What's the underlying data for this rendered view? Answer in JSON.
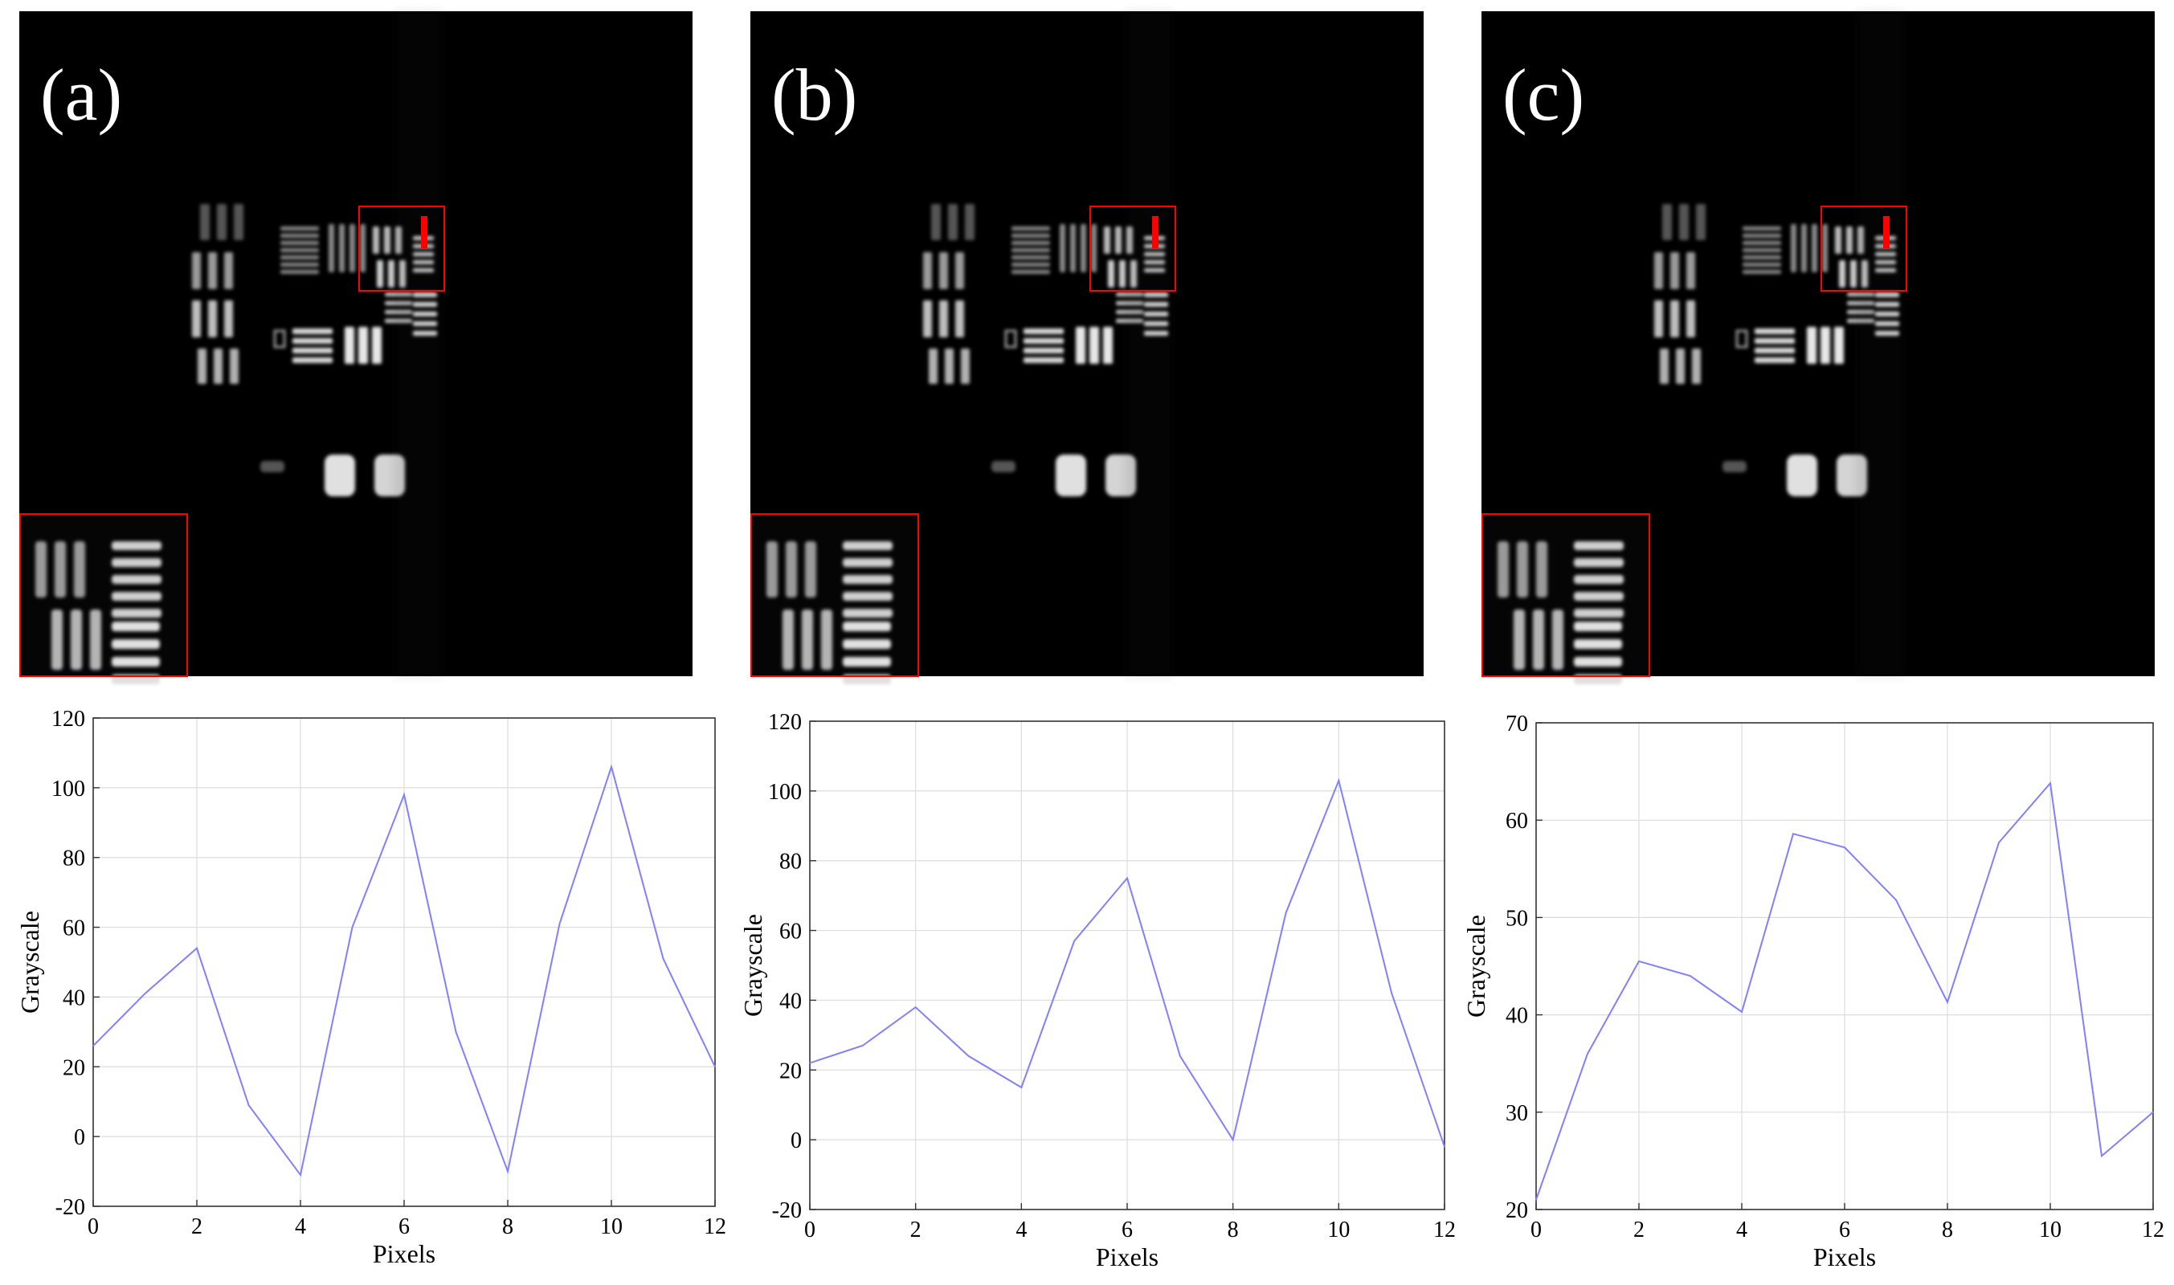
{
  "panels": [
    {
      "label": "(a)"
    },
    {
      "label": "(b)"
    },
    {
      "label": "(c)"
    }
  ],
  "colors": {
    "line": "#8080ff",
    "grid": "#dcdcdc",
    "roi": "#ff0000",
    "background": "#000000"
  },
  "chart_data": [
    {
      "type": "line",
      "panel": "(a)",
      "xlabel": "Pixels",
      "ylabel": "Grayscale",
      "xlim": [
        0,
        12
      ],
      "ylim": [
        -20,
        120
      ],
      "xticks": [
        0,
        2,
        4,
        6,
        8,
        10,
        12
      ],
      "yticks": [
        -20,
        0,
        20,
        40,
        60,
        80,
        100,
        120
      ],
      "grid": true,
      "x": [
        0,
        1,
        2,
        3,
        4,
        5,
        6,
        7,
        8,
        9,
        10,
        11,
        12
      ],
      "series": [
        {
          "values": [
            26,
            41,
            54,
            9,
            -11,
            60,
            98,
            30,
            -10,
            61,
            106,
            51,
            20
          ]
        }
      ]
    },
    {
      "type": "line",
      "panel": "(b)",
      "xlabel": "Pixels",
      "ylabel": "Grayscale",
      "xlim": [
        0,
        12
      ],
      "ylim": [
        -20,
        120
      ],
      "xticks": [
        0,
        2,
        4,
        6,
        8,
        10,
        12
      ],
      "yticks": [
        -20,
        0,
        20,
        40,
        60,
        80,
        100,
        120
      ],
      "grid": true,
      "x": [
        0,
        1,
        2,
        3,
        4,
        5,
        6,
        7,
        8,
        9,
        10,
        11,
        12
      ],
      "series": [
        {
          "values": [
            22,
            27,
            38,
            24,
            15,
            57,
            75,
            24,
            0,
            65,
            103,
            42,
            -2
          ]
        }
      ]
    },
    {
      "type": "line",
      "panel": "(c)",
      "xlabel": "Pixels",
      "ylabel": "Grayscale",
      "xlim": [
        0,
        12
      ],
      "ylim": [
        20,
        70
      ],
      "xticks": [
        0,
        2,
        4,
        6,
        8,
        10,
        12
      ],
      "yticks": [
        20,
        30,
        40,
        50,
        60,
        70
      ],
      "grid": true,
      "x": [
        0,
        1,
        2,
        3,
        4,
        5,
        6,
        7,
        8,
        9,
        10,
        11,
        12
      ],
      "series": [
        {
          "values": [
            21,
            36,
            45.5,
            44,
            40.3,
            58.6,
            57.2,
            51.8,
            41.3,
            57.7,
            63.8,
            25.5,
            30
          ]
        }
      ]
    }
  ]
}
